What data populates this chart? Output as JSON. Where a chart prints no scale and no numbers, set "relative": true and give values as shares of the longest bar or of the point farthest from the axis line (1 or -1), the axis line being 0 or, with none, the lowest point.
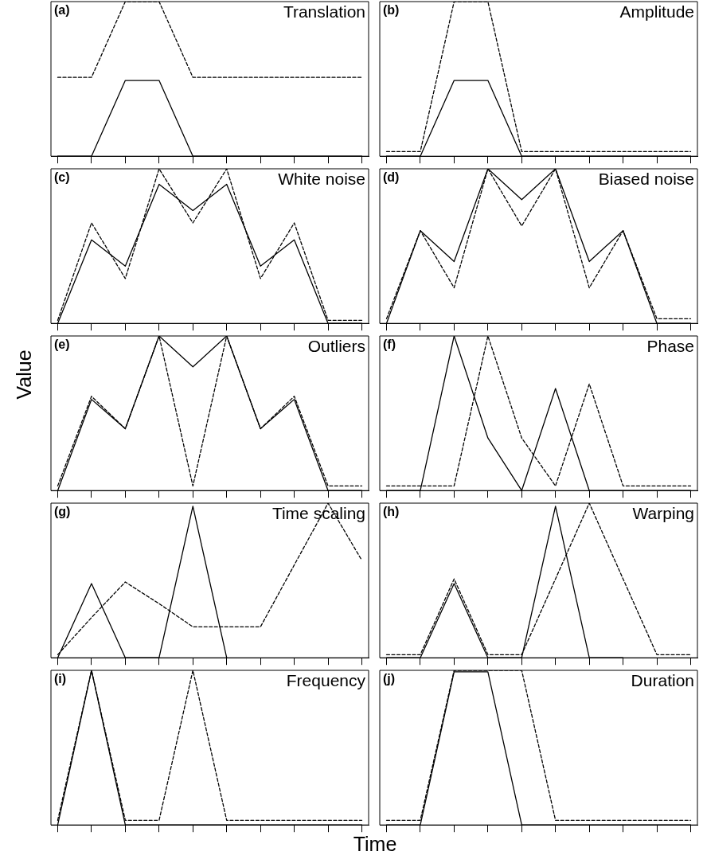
{
  "chart_data": [
    {
      "type": "line",
      "title": "(a)",
      "subtitle": "Translation",
      "relative": true,
      "marker": "none",
      "categories": [
        null,
        null,
        null,
        null,
        null,
        null,
        null,
        null,
        null,
        null
      ],
      "series": [
        {
          "color": "#000000",
          "line_style": "solid",
          "values": [
            0,
            0,
            0.49,
            0.49,
            0,
            0,
            0,
            0,
            0,
            0
          ]
        },
        {
          "color": "#000000",
          "line_style": "dashed",
          "values": [
            0.51,
            0.51,
            1,
            1,
            0.51,
            0.51,
            0.51,
            0.51,
            0.51,
            0.51
          ]
        }
      ]
    },
    {
      "type": "line",
      "title": "(b)",
      "subtitle": "Amplitude",
      "relative": true,
      "marker": "none",
      "categories": [
        null,
        null,
        null,
        null,
        null,
        null,
        null,
        null,
        null,
        null
      ],
      "series": [
        {
          "color": "#000000",
          "line_style": "solid",
          "values": [
            0,
            0,
            0.49,
            0.49,
            0,
            0,
            0,
            0,
            0,
            0
          ]
        },
        {
          "color": "#000000",
          "line_style": "dashed",
          "values": [
            0.03,
            0.03,
            1,
            1,
            0.03,
            0.03,
            0.03,
            0.03,
            0.03,
            0.03
          ]
        }
      ]
    },
    {
      "type": "line",
      "title": "(c)",
      "subtitle": "White noise",
      "relative": true,
      "marker": "none",
      "categories": [
        null,
        null,
        null,
        null,
        null,
        null,
        null,
        null,
        null,
        null
      ],
      "series": [
        {
          "color": "#000000",
          "line_style": "solid",
          "values": [
            0,
            0.54,
            0.37,
            0.9,
            0.73,
            0.9,
            0.37,
            0.54,
            0,
            0
          ]
        },
        {
          "color": "#000000",
          "line_style": "dashed",
          "values": [
            0.02,
            0.65,
            0.29,
            1,
            0.65,
            1,
            0.29,
            0.65,
            0.02,
            0.02
          ]
        }
      ]
    },
    {
      "type": "line",
      "title": "(d)",
      "subtitle": "Biased noise",
      "relative": true,
      "marker": "none",
      "categories": [
        null,
        null,
        null,
        null,
        null,
        null,
        null,
        null,
        null,
        null
      ],
      "series": [
        {
          "color": "#000000",
          "line_style": "solid",
          "values": [
            0,
            0.6,
            0.4,
            1,
            0.8,
            1,
            0.4,
            0.6,
            0,
            0
          ]
        },
        {
          "color": "#000000",
          "line_style": "dashed",
          "values": [
            0.03,
            0.6,
            0.23,
            1,
            0.63,
            1,
            0.23,
            0.6,
            0.03,
            0.03
          ]
        }
      ]
    },
    {
      "type": "line",
      "title": "(e)",
      "subtitle": "Outliers",
      "ylabel": "Value",
      "relative": true,
      "marker": "none",
      "categories": [
        null,
        null,
        null,
        null,
        null,
        null,
        null,
        null,
        null,
        null
      ],
      "series": [
        {
          "color": "#000000",
          "line_style": "solid",
          "values": [
            0,
            0.59,
            0.4,
            1,
            0.8,
            1,
            0.4,
            0.59,
            0,
            0
          ]
        },
        {
          "color": "#000000",
          "line_style": "dashed",
          "values": [
            0.03,
            0.61,
            0.4,
            1,
            0.03,
            1,
            0.4,
            0.61,
            0.03,
            0.03
          ]
        }
      ]
    },
    {
      "type": "line",
      "title": "(f)",
      "subtitle": "Phase",
      "relative": true,
      "marker": "none",
      "categories": [
        null,
        null,
        null,
        null,
        null,
        null,
        null,
        null,
        null,
        null
      ],
      "series": [
        {
          "color": "#000000",
          "line_style": "solid",
          "values": [
            0,
            0,
            1,
            0.34,
            0,
            0.66,
            0,
            0,
            0,
            0
          ]
        },
        {
          "color": "#000000",
          "line_style": "dashed",
          "values": [
            0.03,
            0.03,
            0.03,
            1,
            0.34,
            0.03,
            0.69,
            0.03,
            0.03,
            0.03
          ]
        }
      ]
    },
    {
      "type": "line",
      "title": "(g)",
      "subtitle": "Time scaling",
      "relative": true,
      "marker": "none",
      "categories": [
        null,
        null,
        null,
        null,
        null,
        null,
        null,
        null,
        null,
        null
      ],
      "series": [
        {
          "color": "#000000",
          "line_style": "solid",
          "values": [
            0,
            0.48,
            0,
            0,
            0.98,
            0,
            null,
            null,
            null,
            null
          ]
        },
        {
          "color": "#000000",
          "line_style": "dashed",
          "values": [
            0.02,
            0.26,
            0.49,
            0.35,
            0.2,
            0.2,
            0.2,
            0.6,
            1,
            0.63
          ]
        }
      ]
    },
    {
      "type": "line",
      "title": "(h)",
      "subtitle": "Warping",
      "relative": true,
      "marker": "none",
      "categories": [
        null,
        null,
        null,
        null,
        null,
        null,
        null,
        null,
        null,
        null
      ],
      "series": [
        {
          "color": "#000000",
          "line_style": "solid",
          "values": [
            0,
            0,
            0.48,
            0,
            0,
            0.98,
            0,
            0,
            null,
            null
          ]
        },
        {
          "color": "#000000",
          "line_style": "dashed",
          "values": [
            0.02,
            0.02,
            0.51,
            0.02,
            0.02,
            0.51,
            1,
            0.51,
            0.02,
            0.02
          ]
        }
      ]
    },
    {
      "type": "line",
      "title": "(i)",
      "subtitle": "Frequency",
      "xlabel": "Time",
      "relative": true,
      "marker": "none",
      "categories": [
        null,
        null,
        null,
        null,
        null,
        null,
        null,
        null,
        null,
        null
      ],
      "series": [
        {
          "color": "#000000",
          "line_style": "solid",
          "values": [
            0,
            1,
            0,
            0,
            0,
            0,
            0,
            0,
            0,
            0
          ]
        },
        {
          "color": "#000000",
          "line_style": "dashed",
          "values": [
            0.03,
            1,
            0.03,
            0.03,
            1,
            0.03,
            0.03,
            0.03,
            0.03,
            0.03
          ]
        }
      ]
    },
    {
      "type": "line",
      "title": "(j)",
      "subtitle": "Duration",
      "relative": true,
      "marker": "none",
      "categories": [
        null,
        null,
        null,
        null,
        null,
        null,
        null,
        null,
        null,
        null
      ],
      "series": [
        {
          "color": "#000000",
          "line_style": "solid",
          "values": [
            0,
            0,
            0.99,
            0.99,
            0,
            0,
            0,
            0,
            0,
            0
          ]
        },
        {
          "color": "#000000",
          "line_style": "dashed",
          "values": [
            0.03,
            0.03,
            1,
            1,
            1,
            0.03,
            0.03,
            0.03,
            0.03,
            0.03
          ]
        }
      ]
    }
  ]
}
